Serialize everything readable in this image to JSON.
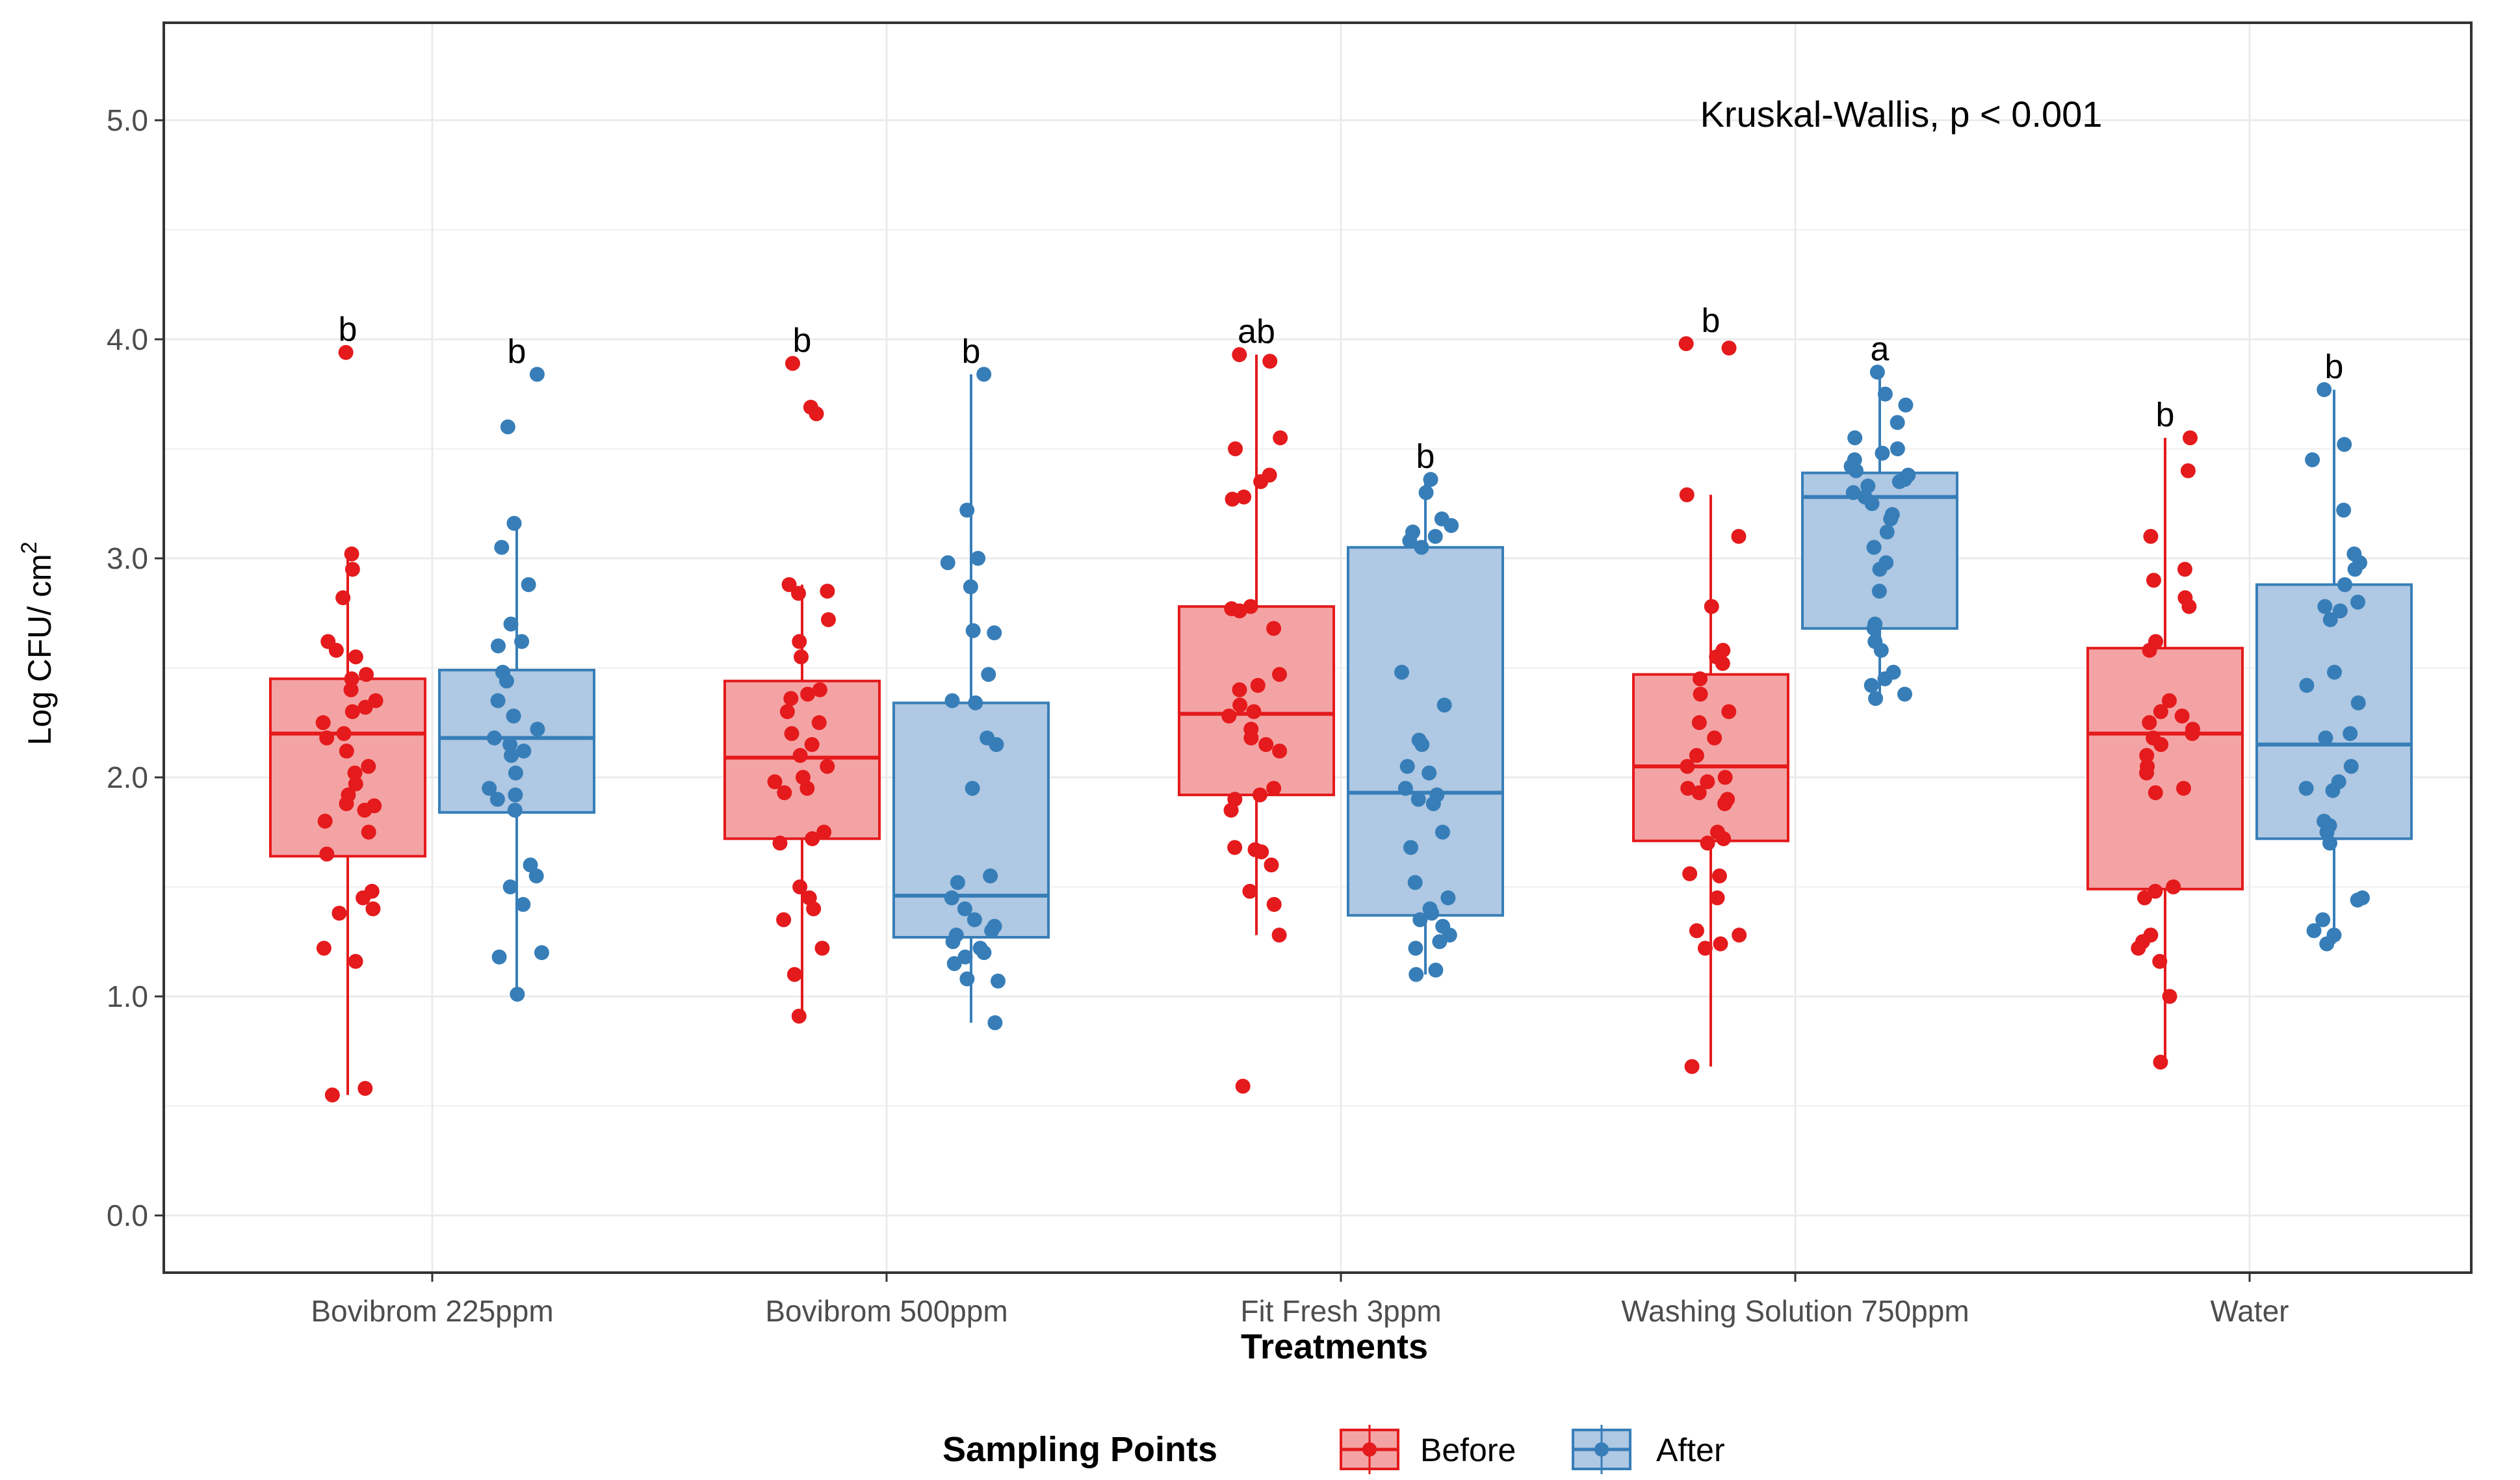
{
  "chart_data": {
    "type": "boxplot",
    "title": "",
    "annotation": "Kruskal-Wallis, p < 0.001",
    "xlabel": "Treatments",
    "ylabel": "Log CFU/ cm",
    "ylabel_superscript": "2",
    "ylim": [
      -0.45,
      5.5
    ],
    "yticks": [
      0.0,
      1.0,
      2.0,
      3.0,
      4.0,
      5.0
    ],
    "ytick_labels": [
      "0.0",
      "1.0",
      "2.0",
      "3.0",
      "4.0",
      "5.0"
    ],
    "grid": true,
    "categories": [
      "Bovibrom 225ppm",
      "Bovibrom 500ppm",
      "Fit Fresh 3ppm",
      "Washing Solution 750ppm",
      "Water"
    ],
    "legend": {
      "title": "Sampling Points",
      "position": "bottom",
      "entries": [
        {
          "name": "Before",
          "color": "#E41A1C",
          "fill": "#F4A3A4"
        },
        {
          "name": "After",
          "color": "#377EB8",
          "fill": "#AFC8E3"
        }
      ]
    },
    "series": [
      {
        "name": "Before",
        "color": "#E41A1C",
        "boxes": [
          {
            "category": "Bovibrom 225ppm",
            "lower_whisker": 0.55,
            "q1": 1.64,
            "median": 2.2,
            "q3": 2.45,
            "upper_whisker": 3.02,
            "letter": "b",
            "points": [
              3.94,
              3.02,
              2.95,
              2.82,
              2.62,
              2.58,
              2.55,
              2.47,
              2.45,
              2.4,
              2.35,
              2.32,
              2.3,
              2.25,
              2.2,
              2.18,
              2.12,
              2.05,
              2.02,
              1.97,
              1.92,
              1.88,
              1.87,
              1.85,
              1.8,
              1.75,
              1.65,
              1.48,
              1.45,
              1.4,
              1.38,
              1.22,
              1.16,
              0.58,
              0.55
            ]
          },
          {
            "category": "Bovibrom 500ppm",
            "lower_whisker": 0.91,
            "q1": 1.72,
            "median": 2.09,
            "q3": 2.44,
            "upper_whisker": 2.88,
            "letter": "b",
            "points": [
              3.89,
              3.69,
              3.66,
              2.88,
              2.85,
              2.84,
              2.72,
              2.62,
              2.55,
              2.4,
              2.38,
              2.36,
              2.3,
              2.25,
              2.2,
              2.15,
              2.1,
              2.05,
              2.0,
              1.98,
              1.95,
              1.93,
              1.75,
              1.72,
              1.7,
              1.5,
              1.45,
              1.4,
              1.35,
              1.22,
              1.1,
              0.91
            ]
          },
          {
            "category": "Fit Fresh 3ppm",
            "lower_whisker": 1.28,
            "q1": 1.92,
            "median": 2.29,
            "q3": 2.78,
            "upper_whisker": 3.93,
            "letter": "ab",
            "points": [
              3.93,
              3.9,
              3.55,
              3.5,
              3.38,
              3.35,
              3.28,
              3.27,
              2.78,
              2.77,
              2.76,
              2.68,
              2.47,
              2.42,
              2.4,
              2.33,
              2.3,
              2.28,
              2.22,
              2.18,
              2.15,
              2.12,
              1.95,
              1.92,
              1.9,
              1.85,
              1.68,
              1.67,
              1.66,
              1.6,
              1.48,
              1.42,
              1.28,
              0.59
            ]
          },
          {
            "category": "Washing Solution 750ppm",
            "lower_whisker": 0.68,
            "q1": 1.71,
            "median": 2.05,
            "q3": 2.47,
            "upper_whisker": 3.29,
            "letter": "b",
            "points": [
              3.98,
              3.96,
              3.29,
              3.1,
              2.78,
              2.58,
              2.55,
              2.52,
              2.45,
              2.38,
              2.3,
              2.25,
              2.18,
              2.1,
              2.05,
              2.0,
              1.98,
              1.95,
              1.93,
              1.9,
              1.88,
              1.75,
              1.72,
              1.7,
              1.56,
              1.55,
              1.45,
              1.3,
              1.28,
              1.24,
              1.22,
              0.68
            ]
          },
          {
            "category": "Water",
            "lower_whisker": 0.7,
            "q1": 1.49,
            "median": 2.2,
            "q3": 2.59,
            "upper_whisker": 3.55,
            "letter": "b",
            "points": [
              3.55,
              3.4,
              3.1,
              2.95,
              2.9,
              2.82,
              2.78,
              2.62,
              2.58,
              2.35,
              2.3,
              2.28,
              2.25,
              2.22,
              2.2,
              2.18,
              2.15,
              2.1,
              2.05,
              2.02,
              1.95,
              1.93,
              1.5,
              1.48,
              1.45,
              1.28,
              1.25,
              1.22,
              1.16,
              1.0,
              0.7
            ]
          }
        ]
      },
      {
        "name": "After",
        "color": "#377EB8",
        "boxes": [
          {
            "category": "Bovibrom 225ppm",
            "lower_whisker": 1.01,
            "q1": 1.84,
            "median": 2.18,
            "q3": 2.49,
            "upper_whisker": 3.16,
            "letter": "b",
            "points": [
              3.84,
              3.6,
              3.16,
              3.05,
              2.88,
              2.7,
              2.62,
              2.6,
              2.48,
              2.44,
              2.35,
              2.28,
              2.22,
              2.18,
              2.15,
              2.12,
              2.1,
              2.02,
              1.95,
              1.92,
              1.9,
              1.85,
              1.6,
              1.55,
              1.5,
              1.42,
              1.2,
              1.18,
              1.01
            ]
          },
          {
            "category": "Bovibrom 500ppm",
            "lower_whisker": 0.88,
            "q1": 1.27,
            "median": 1.46,
            "q3": 2.34,
            "upper_whisker": 3.84,
            "letter": "b",
            "points": [
              3.84,
              3.22,
              3.0,
              2.98,
              2.87,
              2.67,
              2.66,
              2.47,
              2.35,
              2.34,
              2.18,
              2.15,
              1.95,
              1.55,
              1.52,
              1.45,
              1.4,
              1.35,
              1.32,
              1.3,
              1.28,
              1.25,
              1.22,
              1.2,
              1.18,
              1.15,
              1.08,
              1.07,
              0.88
            ]
          },
          {
            "category": "Fit Fresh 3ppm",
            "lower_whisker": 1.1,
            "q1": 1.37,
            "median": 1.93,
            "q3": 3.05,
            "upper_whisker": 3.36,
            "letter": "b",
            "points": [
              3.36,
              3.3,
              3.18,
              3.15,
              3.12,
              3.1,
              3.08,
              3.05,
              2.48,
              2.33,
              2.17,
              2.15,
              2.05,
              2.02,
              1.95,
              1.92,
              1.9,
              1.88,
              1.75,
              1.68,
              1.52,
              1.45,
              1.4,
              1.38,
              1.35,
              1.32,
              1.28,
              1.25,
              1.22,
              1.12,
              1.1
            ]
          },
          {
            "category": "Washing Solution 750ppm",
            "lower_whisker": 2.36,
            "q1": 2.68,
            "median": 3.28,
            "q3": 3.39,
            "upper_whisker": 3.85,
            "letter": "a",
            "points": [
              3.85,
              3.75,
              3.7,
              3.62,
              3.55,
              3.5,
              3.48,
              3.45,
              3.42,
              3.4,
              3.38,
              3.36,
              3.35,
              3.33,
              3.3,
              3.28,
              3.25,
              3.2,
              3.18,
              3.12,
              3.05,
              2.98,
              2.95,
              2.85,
              2.7,
              2.68,
              2.62,
              2.58,
              2.48,
              2.45,
              2.42,
              2.38,
              2.36
            ]
          },
          {
            "category": "Water",
            "lower_whisker": 1.24,
            "q1": 1.72,
            "median": 2.15,
            "q3": 2.88,
            "upper_whisker": 3.77,
            "letter": "b",
            "points": [
              3.77,
              3.52,
              3.45,
              3.22,
              3.02,
              2.98,
              2.95,
              2.88,
              2.8,
              2.78,
              2.76,
              2.72,
              2.48,
              2.42,
              2.34,
              2.2,
              2.18,
              2.05,
              1.98,
              1.95,
              1.94,
              1.8,
              1.78,
              1.75,
              1.7,
              1.45,
              1.44,
              1.35,
              1.3,
              1.28,
              1.24
            ]
          }
        ]
      }
    ]
  }
}
